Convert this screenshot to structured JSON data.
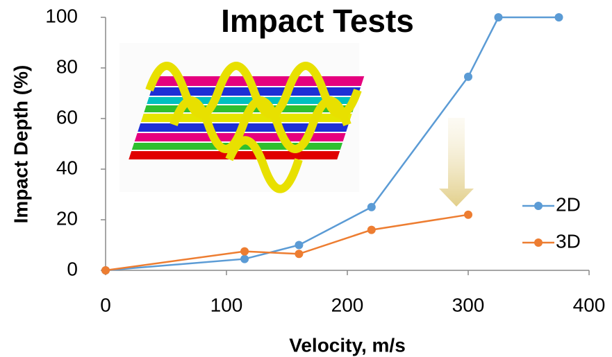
{
  "chart_data": {
    "type": "line",
    "title": "Impact Tests",
    "x_label": "Velocity, m/s",
    "y_label": "Impact Depth (%)",
    "xlim": [
      0,
      400
    ],
    "xticks": [
      0,
      100,
      200,
      300,
      400
    ],
    "ylim": [
      0,
      100
    ],
    "yticks": [
      0,
      20,
      40,
      60,
      80,
      100
    ],
    "legend": "right",
    "series": [
      {
        "name": "2D",
        "color": "#5b9bd5",
        "x": [
          0,
          115,
          160,
          220,
          300,
          325,
          375
        ],
        "values": [
          0,
          4.5,
          10,
          25,
          76.5,
          100,
          100
        ]
      },
      {
        "name": "3D",
        "color": "#ed7d31",
        "x": [
          0,
          115,
          160,
          220,
          300
        ],
        "values": [
          0,
          7.5,
          6.5,
          16,
          22
        ]
      }
    ]
  }
}
